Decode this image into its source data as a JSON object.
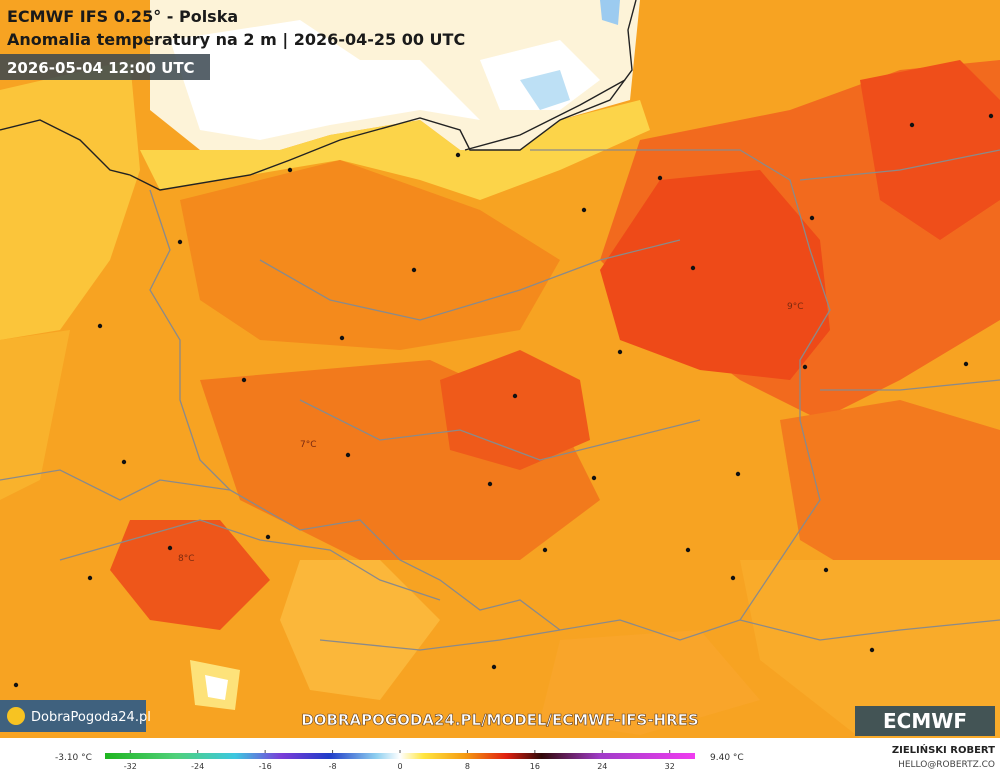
{
  "header": {
    "title": "ECMWF IFS 0.25° - Polska",
    "subtitle": "Anomalia temperatury na 2 m | 2026-04-25 00 UTC",
    "valid_time": "2026-05-04 12:00 UTC"
  },
  "map_labels": [
    "9°C",
    "7°C",
    "8°C"
  ],
  "footer": {
    "logo_text": "DobraPogoda24.pl",
    "url": "DOBRAPOGODA24.PL/MODEL/ECMWF-IFS-HRES",
    "ecmwf_logo": "ECMWF",
    "author": "ZIELIŃSKI ROBERT",
    "email": "HELLO@ROBERTZ.CO"
  },
  "colorbar": {
    "min_label": "-3.10 °C",
    "max_label": "9.40 °C",
    "range": [
      -35,
      35
    ],
    "ticks": [
      -32,
      -24,
      -16,
      -8,
      0,
      8,
      16,
      24,
      32
    ]
  }
}
